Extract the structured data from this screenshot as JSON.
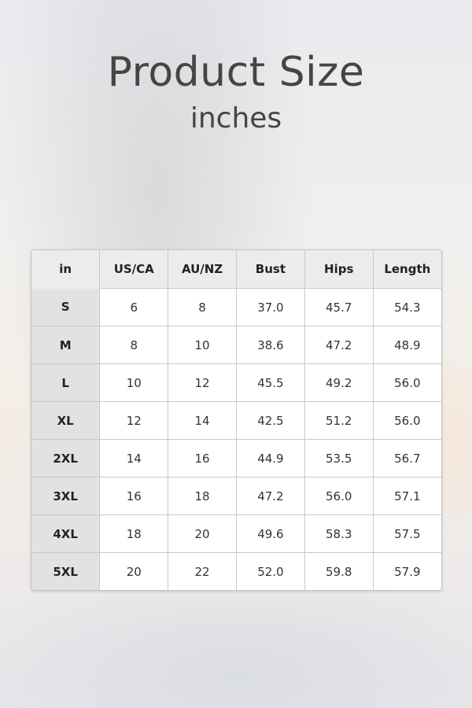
{
  "title": "Product Size",
  "subtitle": "inches",
  "table": {
    "headers": [
      "in",
      "US/CA",
      "AU/NZ",
      "Bust",
      "Hips",
      "Length"
    ],
    "rows": [
      [
        "S",
        "6",
        "8",
        "37.0",
        "45.7",
        "54.3"
      ],
      [
        "M",
        "8",
        "10",
        "38.6",
        "47.2",
        "48.9"
      ],
      [
        "L",
        "10",
        "12",
        "45.5",
        "49.2",
        "56.0"
      ],
      [
        "XL",
        "12",
        "14",
        "42.5",
        "51.2",
        "56.0"
      ],
      [
        "2XL",
        "14",
        "16",
        "44.9",
        "53.5",
        "56.7"
      ],
      [
        "3XL",
        "16",
        "18",
        "47.2",
        "56.0",
        "57.1"
      ],
      [
        "4XL",
        "18",
        "20",
        "49.6",
        "58.3",
        "57.5"
      ],
      [
        "5XL",
        "20",
        "22",
        "52.0",
        "59.8",
        "57.9"
      ]
    ]
  }
}
